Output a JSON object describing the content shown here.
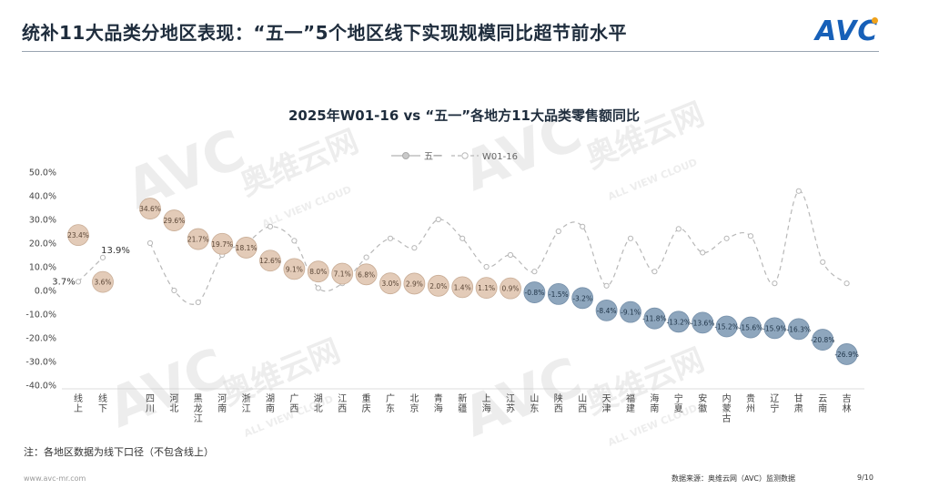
{
  "header": {
    "title": "统补11大品类分地区表现：“五一”5个地区线下实现规模同比超节前水平",
    "logo_text": "AVC",
    "brand_color": "#1760b8",
    "logo_dot_color": "#f0a21b"
  },
  "watermark": {
    "logo_text": "AVC",
    "name_cn": "奥维云网",
    "name_en": "ALL VIEW CLOUD"
  },
  "chart_data": {
    "type": "line",
    "title": "2025年W01-16 vs “五一”各地方11大品类零售额同比",
    "legend_position": "top-center",
    "ylim": [
      -40,
      50
    ],
    "y_ticks": [
      "50.0%",
      "40.0%",
      "30.0%",
      "20.0%",
      "10.0%",
      "0.0%",
      "-10.0%",
      "-20.0%",
      "-30.0%",
      "-40.0%"
    ],
    "grid": false,
    "categories": [
      "线上",
      "线下",
      "四川",
      "河北",
      "黑龙江",
      "河南",
      "浙江",
      "湖南",
      "广西",
      "湖北",
      "江西",
      "重庆",
      "广东",
      "北京",
      "青海",
      "新疆",
      "上海",
      "江苏",
      "山东",
      "陕西",
      "山西",
      "天津",
      "福建",
      "海南",
      "宁夏",
      "安徽",
      "内蒙古",
      "贵州",
      "辽宁",
      "甘肃",
      "云南",
      "吉林"
    ],
    "gap_after_index": 1,
    "series": [
      {
        "name": "五一",
        "style": "markers",
        "values": [
          23.4,
          3.6,
          34.6,
          29.6,
          21.7,
          19.7,
          18.1,
          12.6,
          9.1,
          8.0,
          7.1,
          6.8,
          3.0,
          2.9,
          2.0,
          1.4,
          1.1,
          0.9,
          -0.8,
          -1.5,
          -3.2,
          -8.4,
          -9.1,
          -11.8,
          -13.2,
          -13.6,
          -15.2,
          -15.6,
          -15.9,
          -16.3,
          -20.8,
          -26.9
        ],
        "labels": [
          "23.4%",
          "3.6%",
          "34.6%",
          "29.6%",
          "21.7%",
          "19.7%",
          "18.1%",
          "12.6%",
          "9.1%",
          "8.0%",
          "7.1%",
          "6.8%",
          "3.0%",
          "2.9%",
          "2.0%",
          "1.4%",
          "1.1%",
          "0.9%",
          "-0.8%",
          "-1.5%",
          "-3.2%",
          "-8.4%",
          "-9.1%",
          "-11.8%",
          "-13.2%",
          "-13.6%",
          "-15.2%",
          "-15.6%",
          "-15.9%",
          "-16.3%",
          "-20.8%",
          "-26.9%"
        ],
        "positive_color": "#e3cbb8",
        "positive_border": "#c9ad96",
        "negative_color": "#8ea6bd",
        "negative_border": "#7690aa"
      },
      {
        "name": "W01-16",
        "style": "dashed",
        "color": "#b8b8b8",
        "values": [
          3.7,
          13.9,
          20,
          0,
          -5,
          15,
          20,
          27,
          21,
          1,
          3,
          14,
          22,
          18,
          30,
          22,
          10,
          15,
          8,
          25,
          27,
          2,
          22,
          8,
          26,
          16,
          22,
          23,
          3,
          42,
          12,
          3
        ],
        "labels": [
          "3.7%",
          "13.9%"
        ]
      }
    ]
  },
  "footer": {
    "note": "注：各地区数据为线下口径（不包含线上）",
    "website": "www.avc-mr.com",
    "source": "数据来源：奥维云网（AVC）监测数据",
    "page": "9/10"
  }
}
